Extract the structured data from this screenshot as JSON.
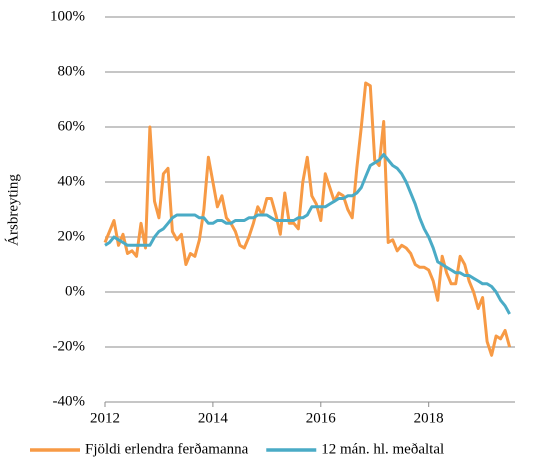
{
  "chart_data": {
    "type": "line",
    "y_label": "Ársbreyting",
    "x": [
      2012,
      2012.083,
      2012.167,
      2012.25,
      2012.333,
      2012.417,
      2012.5,
      2012.583,
      2012.667,
      2012.75,
      2012.833,
      2012.917,
      2013,
      2013.083,
      2013.167,
      2013.25,
      2013.333,
      2013.417,
      2013.5,
      2013.583,
      2013.667,
      2013.75,
      2013.833,
      2013.917,
      2014,
      2014.083,
      2014.167,
      2014.25,
      2014.333,
      2014.417,
      2014.5,
      2014.583,
      2014.667,
      2014.75,
      2014.833,
      2014.917,
      2015,
      2015.083,
      2015.167,
      2015.25,
      2015.333,
      2015.417,
      2015.5,
      2015.583,
      2015.667,
      2015.75,
      2015.833,
      2015.917,
      2016,
      2016.083,
      2016.167,
      2016.25,
      2016.333,
      2016.417,
      2016.5,
      2016.583,
      2016.667,
      2016.75,
      2016.833,
      2016.917,
      2017,
      2017.083,
      2017.167,
      2017.25,
      2017.333,
      2017.417,
      2017.5,
      2017.583,
      2017.667,
      2017.75,
      2017.833,
      2017.917,
      2018,
      2018.083,
      2018.167,
      2018.25,
      2018.333,
      2018.417,
      2018.5,
      2018.583,
      2018.667,
      2018.75,
      2018.833,
      2018.917,
      2019,
      2019.083,
      2019.167,
      2019.25,
      2019.333,
      2019.417,
      2019.5
    ],
    "series": [
      {
        "name": "Fjöldi erlendra ferðamanna",
        "color": "#f79a45",
        "values": [
          18,
          22,
          26,
          17,
          21,
          14,
          15,
          13,
          25,
          16,
          60,
          33,
          27,
          43,
          45,
          22,
          19,
          21,
          10,
          14,
          13,
          19,
          30,
          49,
          40,
          31,
          35,
          27,
          25,
          22,
          17,
          16,
          20,
          25,
          31,
          28,
          34,
          34,
          28,
          21,
          36,
          25,
          25,
          23,
          40,
          49,
          35,
          32,
          26,
          43,
          38,
          33,
          36,
          35,
          30,
          27,
          45,
          60,
          76,
          75,
          48,
          46,
          62,
          18,
          19,
          15,
          17,
          16,
          14,
          10,
          9,
          9,
          8,
          4,
          -3,
          13,
          7,
          3,
          3,
          13,
          10,
          4,
          0,
          -6,
          -2,
          -18,
          -23,
          -16,
          -17,
          -14,
          -20
        ]
      },
      {
        "name": "12 mán. hl. meðaltal",
        "color": "#4aabc6",
        "values": [
          17,
          18,
          20,
          19,
          18,
          17,
          17,
          17,
          17,
          17,
          17,
          20,
          22,
          23,
          25,
          27,
          28,
          28,
          28,
          28,
          28,
          27,
          27,
          25,
          25,
          26,
          26,
          25,
          25,
          26,
          26,
          26,
          27,
          27,
          28,
          28,
          28,
          27,
          26,
          26,
          26,
          26,
          26,
          27,
          27,
          28,
          31,
          31,
          31,
          31,
          32,
          33,
          34,
          34,
          35,
          35,
          36,
          38,
          42,
          46,
          47,
          48,
          50,
          48,
          46,
          45,
          43,
          40,
          36,
          32,
          27,
          23,
          20,
          16,
          11,
          10,
          9,
          8,
          7,
          7,
          6,
          6,
          5,
          4,
          3,
          3,
          2,
          0,
          -3,
          -5,
          -8
        ]
      }
    ],
    "xlim": [
      2012,
      2019.6
    ],
    "xticks": [
      2012,
      2014,
      2016,
      2018
    ],
    "ylim": [
      -40,
      100
    ],
    "yticks": [
      {
        "value": -40,
        "label": "-40%"
      },
      {
        "value": -20,
        "label": "-20%"
      },
      {
        "value": 0,
        "label": "0%"
      },
      {
        "value": 20,
        "label": "20%"
      },
      {
        "value": 40,
        "label": "40%"
      },
      {
        "value": 60,
        "label": "60%"
      },
      {
        "value": 80,
        "label": "80%"
      },
      {
        "value": 100,
        "label": "100%"
      }
    ],
    "grid": true,
    "legend": "bottom"
  }
}
